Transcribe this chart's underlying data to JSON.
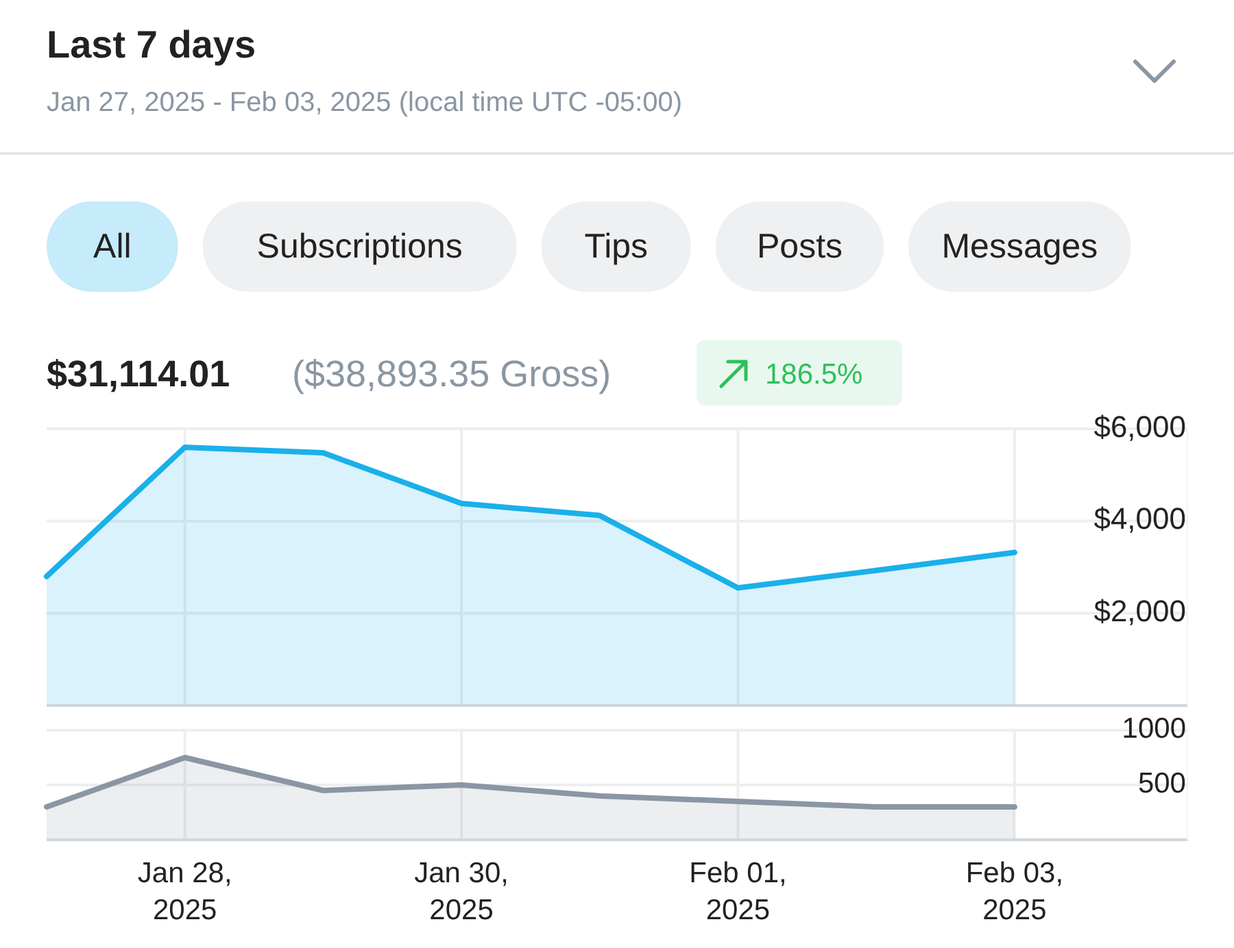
{
  "chart_data": [
    {
      "type": "area",
      "title": "Last 7 days",
      "subtitle": "Jan 27, 2025 - Feb 03, 2025 (local time UTC -05:00)",
      "annotations": [
        "All",
        "Subscriptions",
        "Tips",
        "Posts",
        "Messages",
        "$31,114.01",
        "($38,893.35 Gross)",
        "186.5%"
      ],
      "x": [
        "2025-01-27",
        "2025-01-28",
        "2025-01-29",
        "2025-01-30",
        "2025-01-31",
        "2025-02-01",
        "2025-02-02",
        "2025-02-03"
      ],
      "series": [
        {
          "color": "#1ab0ea",
          "values": [
            2800,
            5600,
            5480,
            4380,
            4120,
            2550,
            2930,
            3320
          ]
        }
      ],
      "xlim": [
        "2025-01-27",
        "2025-02-04T06:00"
      ],
      "xticks": [
        {
          "value": "2025-01-28",
          "label": null
        },
        {
          "value": "2025-01-30",
          "label": null
        },
        {
          "value": "2025-02-01",
          "label": null
        },
        {
          "value": "2025-02-03",
          "label": null
        }
      ],
      "ylim": [
        0,
        6000
      ],
      "yticks": [
        {
          "value": 0,
          "label": null
        },
        {
          "value": 2000,
          "label": "$2,000"
        },
        {
          "value": 4000,
          "label": "$4,000"
        },
        {
          "value": 6000,
          "label": "$6,000"
        }
      ],
      "grid": true,
      "tick_labels": "y"
    },
    {
      "type": "area",
      "x": [
        "2025-01-27",
        "2025-01-28",
        "2025-01-29",
        "2025-01-30",
        "2025-01-31",
        "2025-02-01",
        "2025-02-02",
        "2025-02-03"
      ],
      "series": [
        {
          "color": "#8a96a3",
          "values": [
            300,
            750,
            450,
            500,
            400,
            350,
            300,
            300
          ]
        }
      ],
      "xlim": [
        "2025-01-27",
        "2025-02-04T06:00"
      ],
      "xticks": [
        {
          "value": "2025-01-28",
          "label": "Jan 28, 2025"
        },
        {
          "value": "2025-01-30",
          "label": "Jan 30, 2025"
        },
        {
          "value": "2025-02-01",
          "label": "Feb 01, 2025"
        },
        {
          "value": "2025-02-03",
          "label": "Feb 03, 2025"
        }
      ],
      "ylim": [
        0,
        1000
      ],
      "yticks": [
        {
          "value": 0,
          "label": null
        },
        500,
        1000
      ],
      "grid": true
    }
  ]
}
